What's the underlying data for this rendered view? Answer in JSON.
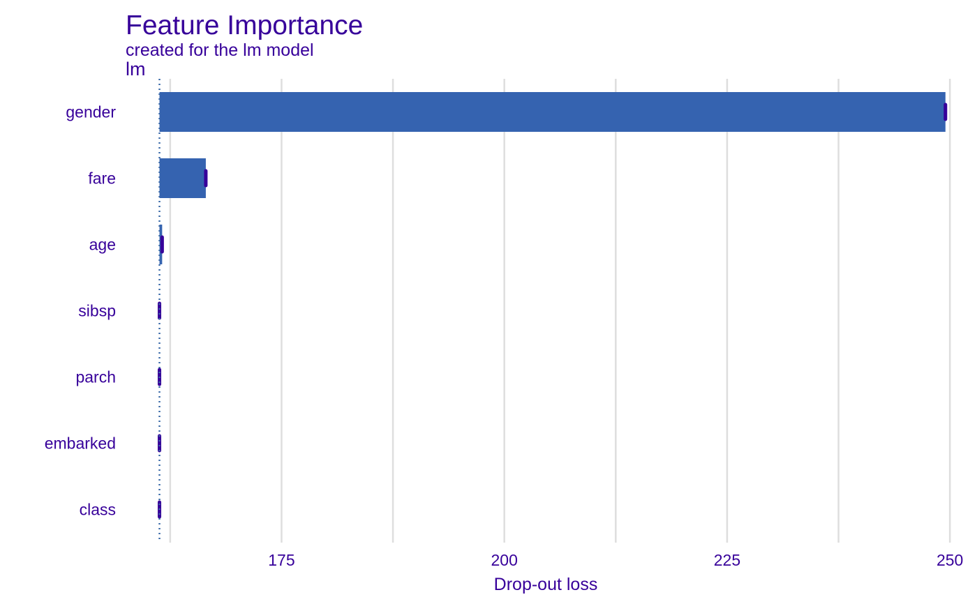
{
  "chart_data": {
    "type": "bar",
    "title": "Feature Importance",
    "subtitle": "created for the lm model",
    "facet_label": "lm",
    "xlabel": "Drop-out loss",
    "ylabel": "",
    "baseline": 161.3,
    "xlim": [
      157.5,
      250.3
    ],
    "xticks": [
      175,
      200,
      225,
      250
    ],
    "categories": [
      "gender",
      "fare",
      "age",
      "sibsp",
      "parch",
      "embarked",
      "class"
    ],
    "values": [
      249.5,
      166.5,
      161.6,
      161.3,
      161.3,
      161.3,
      161.3
    ],
    "grid": true,
    "legend": "none",
    "colors": {
      "bar": "#3563b0",
      "boxplot_mark": "#37009a",
      "baseline": "#3a6aa8",
      "grid": "#dedede",
      "text": "#37009a"
    }
  }
}
